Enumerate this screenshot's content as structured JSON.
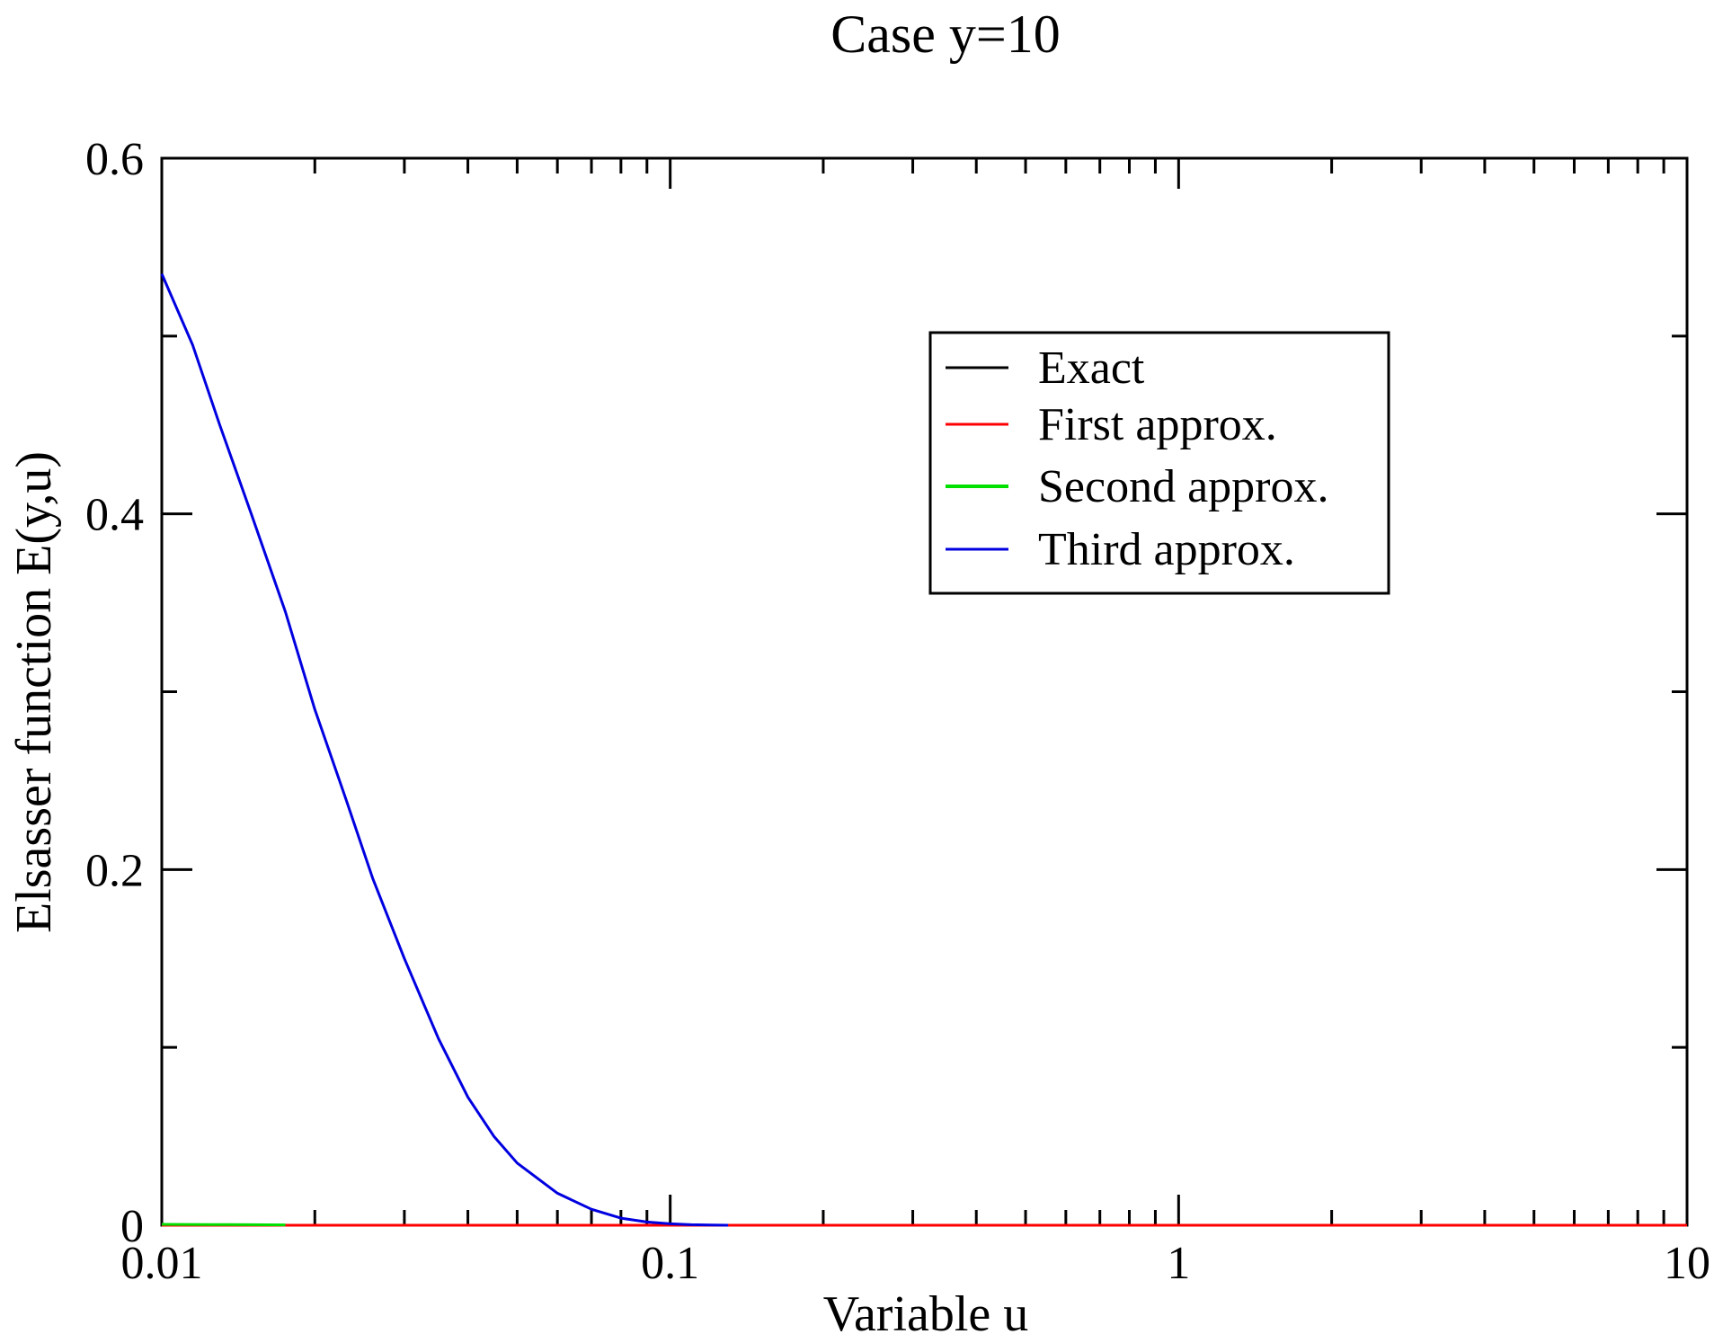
{
  "chart_data": {
    "type": "line",
    "title": "Case y=10",
    "xlabel": "Variable u",
    "ylabel": "Elsasser function E(y,u)",
    "xscale": "log",
    "xlim": [
      0.01,
      10
    ],
    "ylim": [
      0,
      0.6
    ],
    "x_ticks": [
      {
        "value": 0.01,
        "label": "0.01"
      },
      {
        "value": 0.1,
        "label": "0.1"
      },
      {
        "value": 1,
        "label": "1"
      },
      {
        "value": 10,
        "label": "10"
      }
    ],
    "y_ticks": [
      {
        "value": 0,
        "label": "0"
      },
      {
        "value": 0.2,
        "label": "0.2"
      },
      {
        "value": 0.4,
        "label": "0.4"
      },
      {
        "value": 0.6,
        "label": "0.6"
      }
    ],
    "y_minor_ticks": [
      0.1,
      0.3,
      0.5
    ],
    "grid": false,
    "legend_position": "top-right",
    "series": [
      {
        "name": "Exact",
        "color": "#000000",
        "x": [
          0.01,
          0.02,
          0.05,
          0.1,
          0.13,
          1,
          10
        ],
        "y": [
          0,
          0,
          0,
          0,
          0,
          0,
          0
        ]
      },
      {
        "name": "First approx.",
        "color": "#ff0000",
        "x": [
          0.01,
          0.02,
          0.05,
          0.1,
          0.13,
          1,
          10
        ],
        "y": [
          0,
          0,
          0,
          0,
          0,
          0,
          0
        ]
      },
      {
        "name": "Second approx.",
        "color": "#00e000",
        "x": [
          0.01,
          0.0125,
          0.015,
          0.0175
        ],
        "y": [
          0.0005,
          0.0004,
          0.0003,
          0.0002
        ]
      },
      {
        "name": "Third approx.",
        "color": "#0000e0",
        "x": [
          0.01,
          0.0115,
          0.013,
          0.015,
          0.0175,
          0.02,
          0.023,
          0.026,
          0.03,
          0.035,
          0.04,
          0.045,
          0.05,
          0.06,
          0.07,
          0.08,
          0.09,
          0.1,
          0.11,
          0.12,
          0.13
        ],
        "y": [
          0.535,
          0.495,
          0.45,
          0.4,
          0.345,
          0.29,
          0.24,
          0.195,
          0.15,
          0.105,
          0.072,
          0.05,
          0.035,
          0.018,
          0.009,
          0.004,
          0.0018,
          0.0008,
          0.0003,
          0.0001,
          0
        ]
      }
    ]
  }
}
